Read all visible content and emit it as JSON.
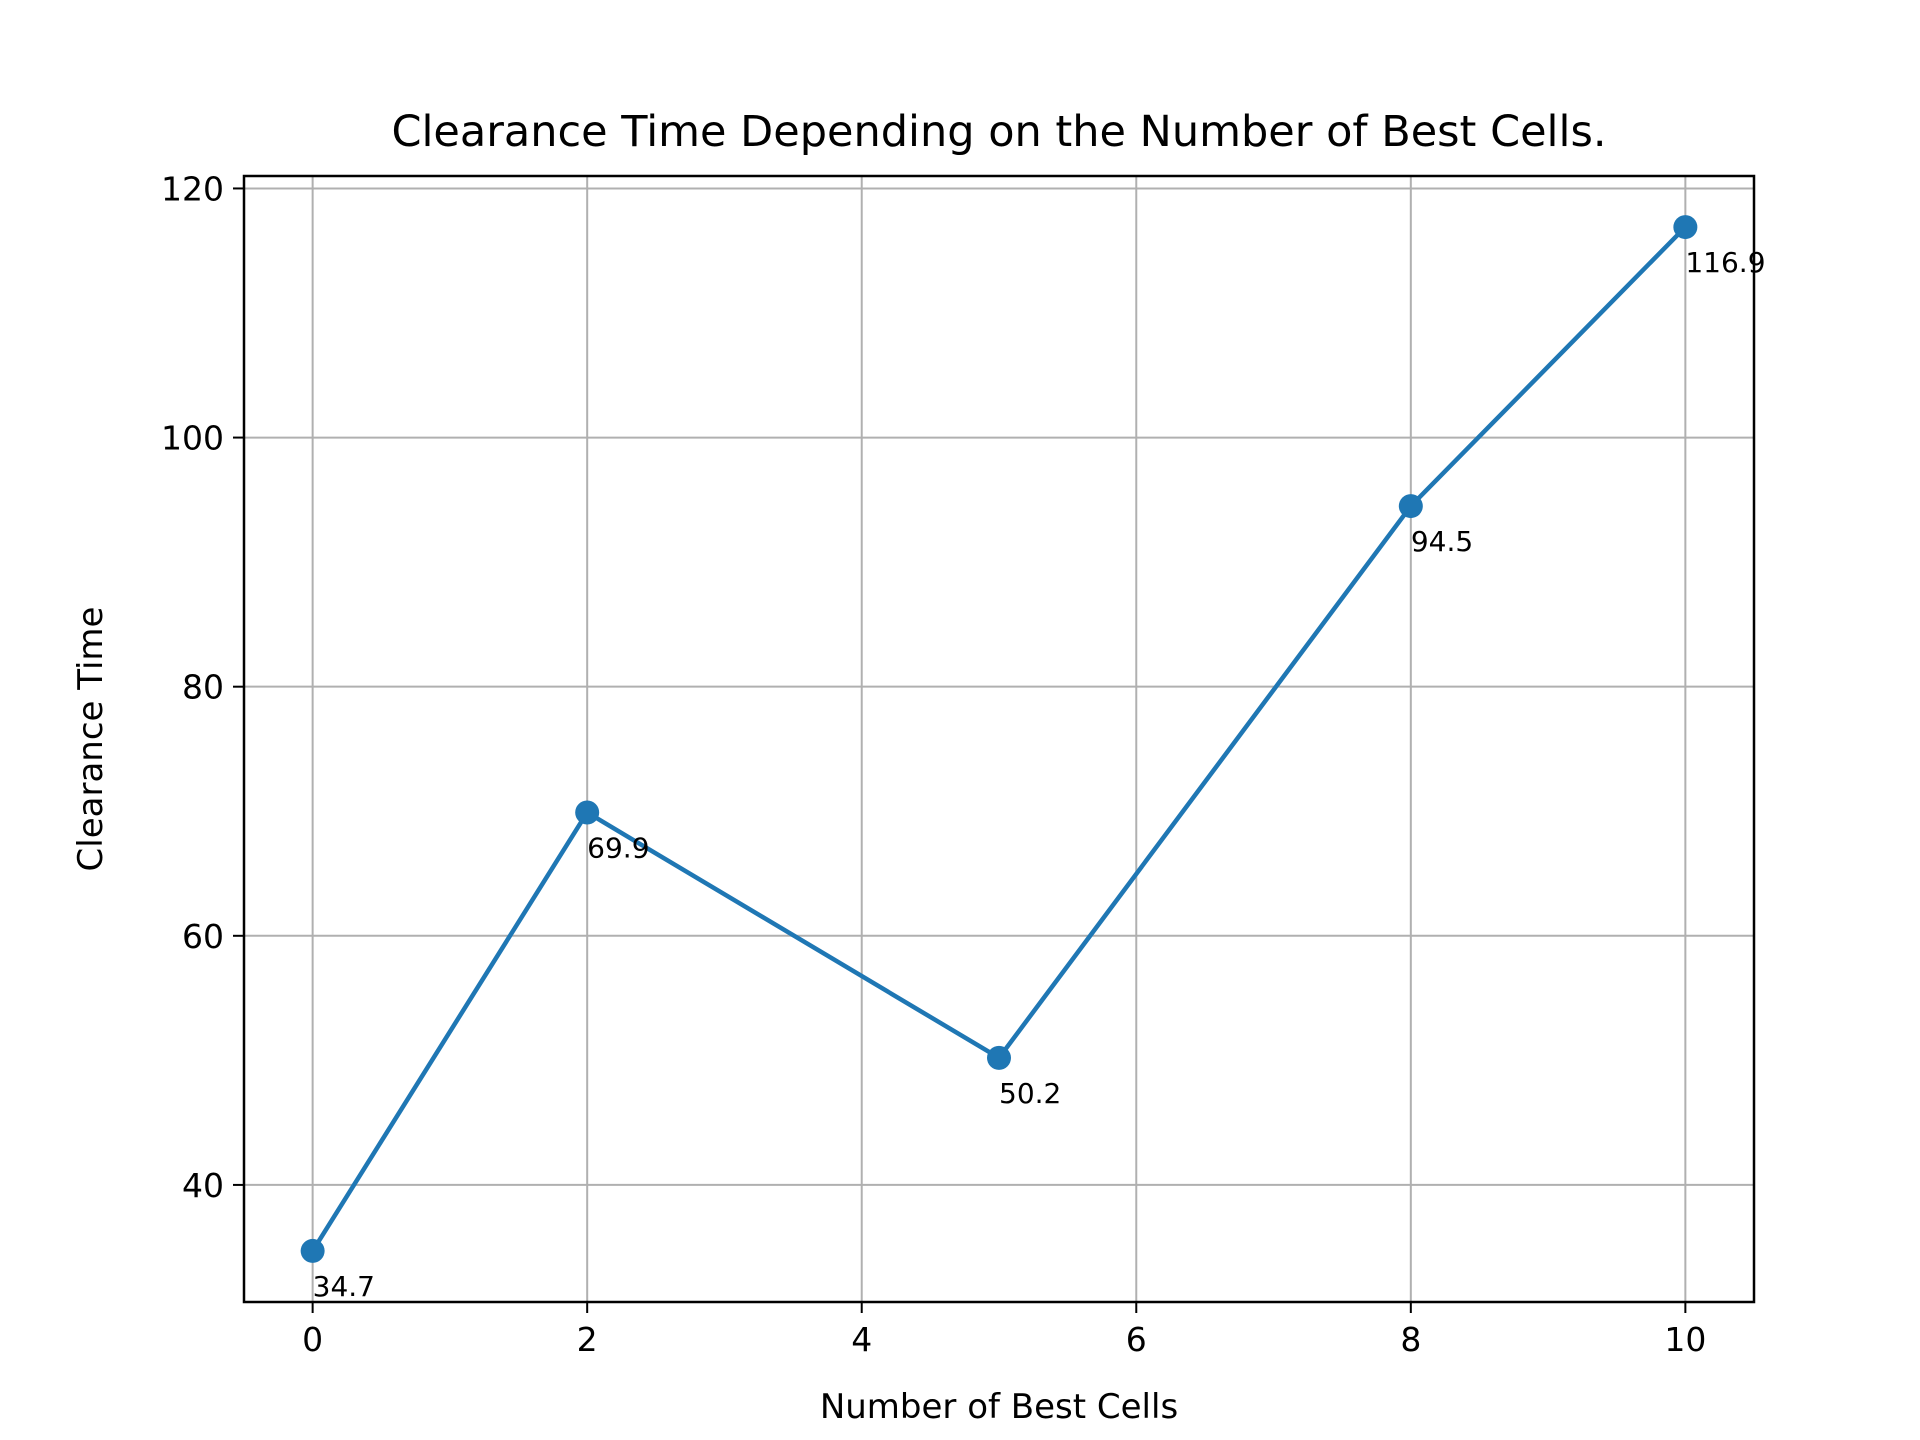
{
  "chart_data": {
    "type": "line",
    "title": "Clearance Time Depending on the Number of Best Cells.",
    "xlabel": "Number of Best Cells",
    "ylabel": "Clearance Time",
    "x": [
      0,
      2,
      5,
      8,
      10
    ],
    "series": [
      {
        "values": [
          34.7,
          69.9,
          50.2,
          94.5,
          116.9
        ],
        "color": "#1f77b4",
        "marker": "circle"
      }
    ],
    "data_labels": [
      "34.7",
      "69.9",
      "50.2",
      "94.5",
      "116.9"
    ],
    "xticks": [
      0,
      2,
      4,
      6,
      8,
      10
    ],
    "xtick_labels": [
      "0",
      "2",
      "4",
      "6",
      "8",
      "10"
    ],
    "yticks": [
      40,
      60,
      80,
      100,
      120
    ],
    "ytick_labels": [
      "40",
      "60",
      "80",
      "100",
      "120"
    ],
    "xlim": [
      -0.5,
      10.5
    ],
    "ylim": [
      30.6,
      121.0
    ],
    "grid": true,
    "grid_color": "#b0b0b0",
    "axes_color": "#000000"
  }
}
